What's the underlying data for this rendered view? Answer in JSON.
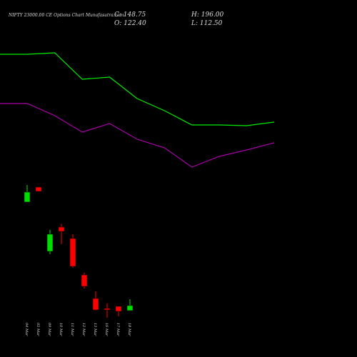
{
  "chart_data": [
    {
      "type": "candlestick",
      "title": "NIFTY 23000.00 CE Options Chart Munafasutra.com",
      "annotations": [
        "C: 148.75",
        "O: 122.40",
        "H: 196.00",
        "L: 112.50"
      ],
      "categories": [
        "04 Mar",
        "05 Mar",
        "09 Mar",
        "10 Mar",
        "11 Mar",
        "12 Mar",
        "13 Mar",
        "16 Mar",
        "17 Mar",
        "18 Mar"
      ],
      "open": [
        217,
        238,
        148,
        182,
        166,
        115,
        82,
        68,
        71,
        65
      ],
      "close": [
        231,
        232,
        172,
        176,
        127,
        99,
        66,
        66,
        64,
        72
      ],
      "high": [
        241,
        238,
        178,
        186,
        172,
        118,
        92,
        75,
        71,
        81
      ],
      "low": [
        217,
        232,
        144,
        158,
        125,
        96,
        65,
        55,
        57,
        65
      ],
      "up_color": "#00dd00",
      "down_color": "#ff0000",
      "ylim": [
        0,
        500
      ]
    },
    {
      "type": "line",
      "series": [
        {
          "color": "#00ee00",
          "values": [
            424,
            424,
            426,
            389,
            392,
            362,
            345,
            325,
            325,
            324,
            329
          ]
        },
        {
          "color": "#aa00aa",
          "values": [
            355,
            355,
            338,
            315,
            327,
            305,
            293,
            266,
            281,
            290,
            300
          ]
        }
      ],
      "ylim": [
        0,
        500
      ]
    }
  ]
}
